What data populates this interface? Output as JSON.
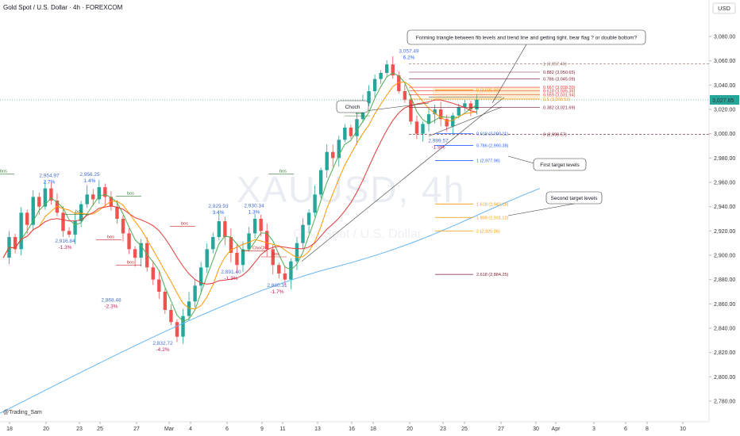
{
  "title": "Gold Spot / U.S. Dollar · 4h · FOREXCOM",
  "currency": "USD",
  "watermark": "XAUUSD, 4h",
  "watermark_sub": "Gold Spot / U.S. Dollar",
  "author": "@Trading_Sam",
  "colors": {
    "up": "#26a69a",
    "down": "#ef5350",
    "ma_fast": "#4caf50",
    "ma_mid": "#ff9800",
    "ma_slow": "#e53935",
    "ma_long": "#64b5f6",
    "current": "#26a69a"
  },
  "chart_data": {
    "type": "candlestick",
    "title": "Gold Spot / U.S. Dollar · 4h · FOREXCOM",
    "y_ticks": [
      3080,
      3060,
      3040,
      3020,
      3000,
      2980,
      2960,
      2940,
      2920,
      2900,
      2880,
      2860,
      2840,
      2820,
      2800,
      2780
    ],
    "y_tick_labels": [
      "3,080.00",
      "3,060.00",
      "3,040.00",
      "3,020.00",
      "3,000.00",
      "2,980.00",
      "2,960.00",
      "2,940.00",
      "2,920.00",
      "2,900.00",
      "2,880.00",
      "2,860.00",
      "2,840.00",
      "2,820.00",
      "2,800.00",
      "2,780.00"
    ],
    "ylim": [
      2770,
      3095
    ],
    "x_ticks": [
      "18",
      "20",
      "23",
      "25",
      "27",
      "Mar",
      "4",
      "6",
      "9",
      "11",
      "13",
      "16",
      "18",
      "20",
      "23",
      "25",
      "27",
      "30",
      "Apr",
      "3",
      "6",
      "8",
      "10"
    ],
    "current_price": 3027.85,
    "current_price_label": "3,027.85",
    "price_path": [
      2898,
      2915,
      2905,
      2935,
      2925,
      2948,
      2940,
      2955,
      2945,
      2935,
      2920,
      2917,
      2928,
      2942,
      2950,
      2946,
      2956,
      2948,
      2940,
      2930,
      2918,
      2905,
      2898,
      2910,
      2890,
      2880,
      2870,
      2855,
      2845,
      2833,
      2850,
      2862,
      2875,
      2890,
      2905,
      2915,
      2928,
      2915,
      2902,
      2892,
      2905,
      2918,
      2930,
      2920,
      2905,
      2892,
      2885,
      2880,
      2895,
      2910,
      2925,
      2935,
      2950,
      2970,
      2985,
      2980,
      2995,
      3005,
      2998,
      3012,
      3025,
      3035,
      3045,
      3050,
      3057,
      3048,
      3035,
      3028,
      3010,
      3000,
      3008,
      3016,
      3020,
      3012,
      3006,
      3015,
      3022,
      3025,
      3020,
      3028
    ],
    "swing_labels": [
      {
        "price": "2,954.97",
        "pct": "2.7%",
        "dir": "up"
      },
      {
        "price": "2,956.25",
        "pct": "1.4%",
        "dir": "up"
      },
      {
        "price": "2,916.84",
        "pct": "-1.3%",
        "dir": "down"
      },
      {
        "price": "2,868.48",
        "pct": "-2.3%",
        "dir": "down"
      },
      {
        "price": "2,832.72",
        "pct": "-4.2%",
        "dir": "down"
      },
      {
        "price": "2,929.93",
        "pct": "3.4%",
        "dir": "up"
      },
      {
        "price": "2,930.34",
        "pct": "1.3%",
        "dir": "up"
      },
      {
        "price": "2,891.40",
        "pct": "-1.3%",
        "dir": "down"
      },
      {
        "price": "2,880.31",
        "pct": "-1.7%",
        "dir": "down"
      },
      {
        "price": "3,057.49",
        "pct": "6.2%",
        "dir": "up"
      },
      {
        "price": "2,999.57",
        "pct": "-1.9%",
        "dir": "down"
      }
    ],
    "structure_labels": [
      "bos",
      "bos",
      "bos",
      "bos",
      "bos",
      "bos",
      "bos",
      "bos",
      "ChoCh",
      "bos"
    ],
    "fib_upper": [
      {
        "label": "1 (3,057.49)",
        "value": 3057.49
      },
      {
        "label": "0.882 (3,050.65)",
        "value": 3050.65
      },
      {
        "label": "0.786 (3,045.09)",
        "value": 3045.09
      },
      {
        "label": "0.667 (3,038.20)",
        "value": 3038.2
      },
      {
        "label": "0.618 (3,035.36)",
        "value": 3035.36
      },
      {
        "label": "0.559 (3,031.94)",
        "value": 3031.94
      },
      {
        "label": "0.5 (3,028.53)",
        "value": 3028.53
      },
      {
        "label": "0.382 (3,021.69)",
        "value": 3021.69
      },
      {
        "label": "0 (2,999.57)",
        "value": 2999.57
      }
    ],
    "fib_target": [
      {
        "label": "0 (3,035.92)",
        "value": 3035.92,
        "color": "#ff9800"
      },
      {
        "label": "0.618 (3,000.11)",
        "value": 3000.11,
        "color": "#2962ff"
      },
      {
        "label": "0.786 (2,990.38)",
        "value": 2990.38,
        "color": "#2962ff"
      },
      {
        "label": "1 (2,977.98)",
        "value": 2977.98,
        "color": "#2962ff"
      },
      {
        "label": "1.618 (2,942.18)",
        "value": 2942.18,
        "color": "#ff9800"
      },
      {
        "label": "1.809 (2,931.12)",
        "value": 2931.12,
        "color": "#ff9800"
      },
      {
        "label": "2 (2,920.05)",
        "value": 2920.05,
        "color": "#ff9800"
      },
      {
        "label": "2.618 (2,884.25)",
        "value": 2884.25,
        "color": "#7b1a2e"
      }
    ],
    "annotations": {
      "triangle": "Forming triangle between fib levels and trend line and getting tight. bear flag ? or double bottom?",
      "choch": "Choch",
      "first_target": "First target levels",
      "second_target": "Second target levels"
    }
  }
}
